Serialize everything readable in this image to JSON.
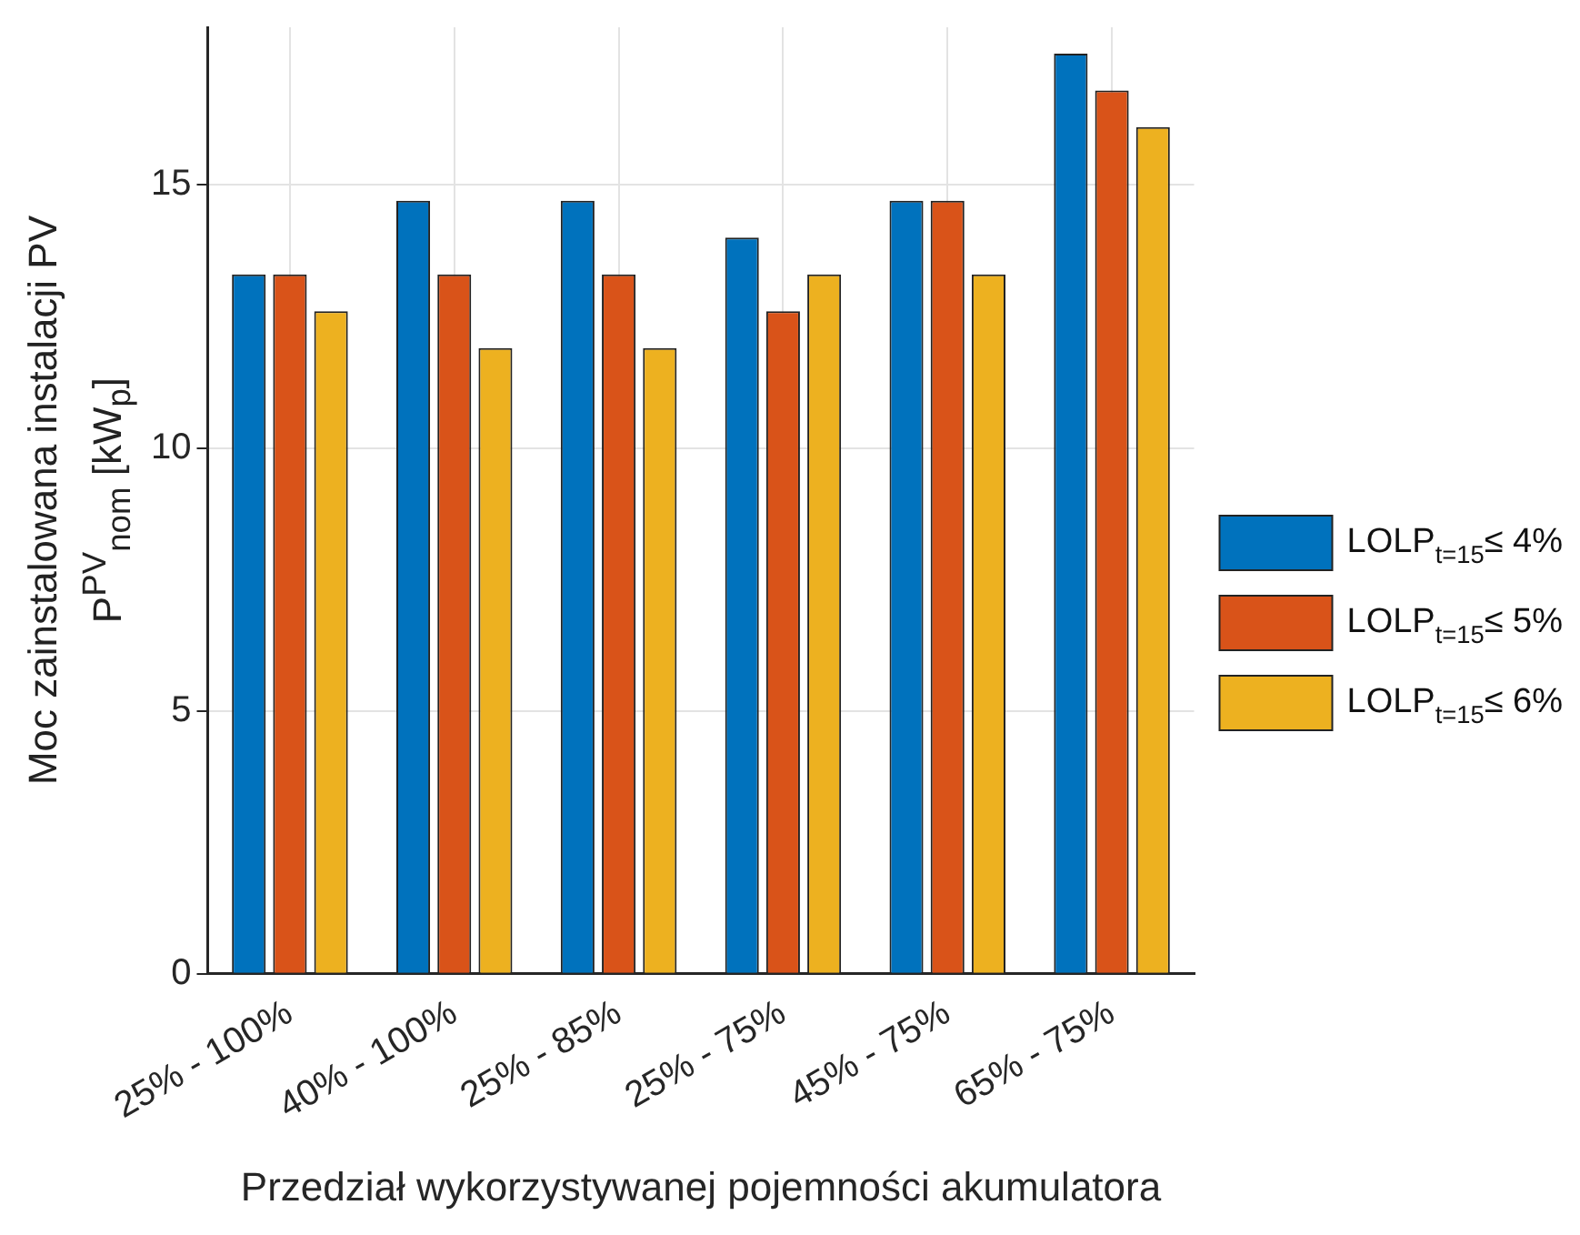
{
  "chart_data": {
    "type": "bar",
    "xlabel": "Przedział wykorzystywanej pojemności akumulatora",
    "ylabel": "Moc zainstalowana instalacji PV\nP$^{PV}$$_{nom}$ [kW$_{p}$]",
    "categories": [
      "25% - 100%",
      "40% - 100%",
      "25% - 85%",
      "25% - 75%",
      "45% - 75%",
      "65% - 75%"
    ],
    "series": [
      {
        "name": "LOLP$_{t=15}$≤ 4%",
        "color": "#0072bd",
        "values": [
          13.3,
          14.7,
          14.7,
          14.0,
          14.7,
          17.5
        ]
      },
      {
        "name": "LOLP$_{t=15}$≤ 5%",
        "color": "#d95319",
        "values": [
          13.3,
          13.3,
          13.3,
          12.6,
          14.7,
          16.8
        ]
      },
      {
        "name": "LOLP$_{t=15}$≤ 6%",
        "color": "#edb120",
        "values": [
          12.6,
          11.9,
          11.9,
          13.3,
          13.3,
          16.1
        ]
      }
    ],
    "ylim": [
      0,
      18
    ],
    "yticks": [
      0,
      5,
      10,
      15
    ],
    "grid": true,
    "legend": "right"
  }
}
